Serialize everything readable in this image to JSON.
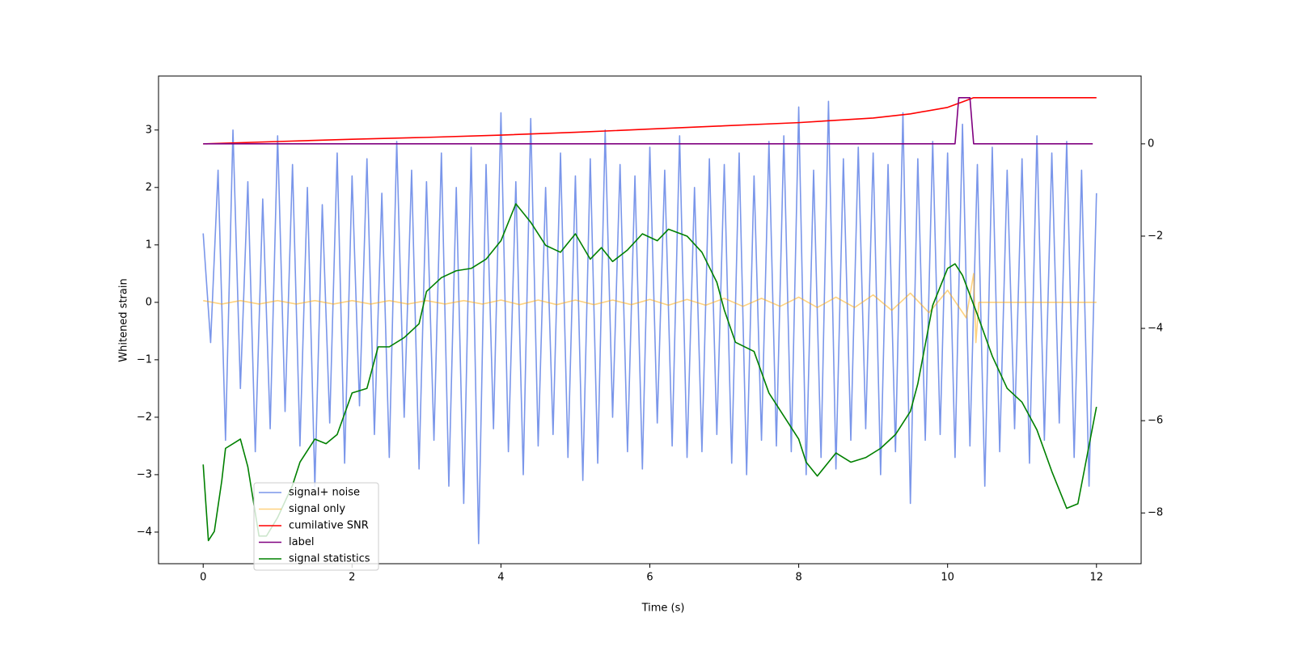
{
  "chart_data": {
    "type": "line",
    "xlabel": "Time (s)",
    "ylabel": "Whitened strain",
    "xlim": [
      -0.6,
      12.6
    ],
    "xticks": [
      0,
      2,
      4,
      6,
      8,
      10,
      12
    ],
    "ylim": [
      -4.55,
      3.94
    ],
    "yticks": [
      {
        "value": -4,
        "label": "−4"
      },
      {
        "value": -3,
        "label": "−3"
      },
      {
        "value": -2,
        "label": "−2"
      },
      {
        "value": -1,
        "label": "−1"
      },
      0,
      1,
      2,
      3
    ],
    "y2lim": [
      -9.1,
      1.47
    ],
    "y2ticks": [
      {
        "value": -8,
        "label": "−8"
      },
      {
        "value": -6,
        "label": "−6"
      },
      {
        "value": -4,
        "label": "−4"
      },
      {
        "value": -2,
        "label": "−2"
      },
      0
    ],
    "legend": "lower left",
    "series": [
      {
        "name": "signal+ noise",
        "color": "#4169e1",
        "opacity": 0.7,
        "x": [
          0,
          0.1,
          0.2,
          0.3,
          0.4,
          0.5,
          0.6,
          0.7,
          0.8,
          0.9,
          1,
          1.1,
          1.2,
          1.3,
          1.4,
          1.5,
          1.6,
          1.7,
          1.8,
          1.9,
          2,
          2.1,
          2.2,
          2.3,
          2.4,
          2.5,
          2.6,
          2.7,
          2.8,
          2.9,
          3,
          3.1,
          3.2,
          3.3,
          3.4,
          3.5,
          3.6,
          3.7,
          3.8,
          3.9,
          4,
          4.1,
          4.2,
          4.3,
          4.4,
          4.5,
          4.6,
          4.7,
          4.8,
          4.9,
          5,
          5.1,
          5.2,
          5.3,
          5.4,
          5.5,
          5.6,
          5.7,
          5.8,
          5.9,
          6,
          6.1,
          6.2,
          6.3,
          6.4,
          6.5,
          6.6,
          6.7,
          6.8,
          6.9,
          7,
          7.1,
          7.2,
          7.3,
          7.4,
          7.5,
          7.6,
          7.7,
          7.8,
          7.9,
          8,
          8.1,
          8.2,
          8.3,
          8.4,
          8.5,
          8.6,
          8.7,
          8.8,
          8.9,
          9,
          9.1,
          9.2,
          9.3,
          9.4,
          9.5,
          9.6,
          9.7,
          9.8,
          9.9,
          10,
          10.1,
          10.2,
          10.3,
          10.4,
          10.5,
          10.6,
          10.7,
          10.8,
          10.9,
          11,
          11.1,
          11.2,
          11.3,
          11.4,
          11.5,
          11.6,
          11.7,
          11.8,
          11.9,
          12
        ],
        "values": [
          1.2,
          -0.7,
          2.3,
          -2.4,
          3.0,
          -1.5,
          2.1,
          -2.6,
          1.8,
          -2.2,
          2.9,
          -1.9,
          2.4,
          -2.5,
          2.0,
          -3.2,
          1.7,
          -2.1,
          2.6,
          -2.8,
          2.2,
          -1.8,
          2.5,
          -2.3,
          1.9,
          -2.7,
          2.8,
          -2.0,
          2.3,
          -2.9,
          2.1,
          -2.4,
          2.6,
          -3.2,
          2.0,
          -3.5,
          2.7,
          -4.2,
          2.4,
          -2.2,
          3.3,
          -2.6,
          2.1,
          -3.0,
          3.2,
          -2.5,
          2.0,
          -2.3,
          2.6,
          -2.7,
          2.2,
          -3.1,
          2.5,
          -2.8,
          3.0,
          -2.0,
          2.4,
          -2.6,
          2.2,
          -2.9,
          2.7,
          -2.1,
          2.3,
          -2.5,
          2.9,
          -2.7,
          2.0,
          -2.6,
          2.5,
          -2.3,
          2.4,
          -2.8,
          2.6,
          -3.0,
          2.2,
          -2.4,
          2.8,
          -2.5,
          2.9,
          -2.6,
          3.4,
          -3.0,
          2.3,
          -2.7,
          3.5,
          -2.9,
          2.5,
          -2.4,
          2.7,
          -2.2,
          2.6,
          -3.0,
          2.4,
          -2.6,
          3.3,
          -3.5,
          2.5,
          -2.4,
          2.8,
          -2.3,
          2.6,
          -2.7,
          3.1,
          -2.5,
          2.4,
          -3.2,
          2.7,
          -2.6,
          2.3,
          -2.2,
          2.5,
          -2.8,
          2.9,
          -2.4,
          2.6,
          -2.1,
          2.8,
          -2.7,
          2.3,
          -3.2,
          1.9
        ]
      },
      {
        "name": "signal only",
        "color": "#ffa500",
        "opacity": 0.5,
        "x": [
          0,
          0.25,
          0.5,
          0.75,
          1,
          1.25,
          1.5,
          1.75,
          2,
          2.25,
          2.5,
          2.75,
          3,
          3.25,
          3.5,
          3.75,
          4,
          4.25,
          4.5,
          4.75,
          5,
          5.25,
          5.5,
          5.75,
          6,
          6.25,
          6.5,
          6.75,
          7,
          7.25,
          7.5,
          7.75,
          8,
          8.25,
          8.5,
          8.75,
          9,
          9.25,
          9.5,
          9.75,
          10,
          10.25,
          10.35,
          10.38,
          10.42,
          12
        ],
        "values": [
          0.03,
          -0.03,
          0.03,
          -0.03,
          0.03,
          -0.03,
          0.03,
          -0.03,
          0.03,
          -0.03,
          0.03,
          -0.03,
          0.03,
          -0.03,
          0.03,
          -0.03,
          0.04,
          -0.04,
          0.04,
          -0.04,
          0.04,
          -0.04,
          0.04,
          -0.04,
          0.05,
          -0.05,
          0.05,
          -0.05,
          0.07,
          -0.07,
          0.07,
          -0.07,
          0.09,
          -0.09,
          0.09,
          -0.09,
          0.13,
          -0.14,
          0.16,
          -0.18,
          0.21,
          -0.27,
          0.5,
          -0.7,
          0,
          0
        ]
      },
      {
        "name": "cumilative SNR",
        "color": "#ff0000",
        "axis": "y2",
        "x": [
          0,
          1,
          2,
          3,
          4,
          5,
          6,
          7,
          8,
          9,
          9.5,
          10,
          10.2,
          10.35,
          12
        ],
        "values": [
          0,
          0.05,
          0.1,
          0.14,
          0.19,
          0.25,
          0.32,
          0.39,
          0.46,
          0.56,
          0.65,
          0.79,
          0.91,
          1.0,
          1.0
        ]
      },
      {
        "name": "label",
        "color": "#800080",
        "axis": "y2",
        "x": [
          0,
          10.1,
          10.15,
          10.3,
          10.35,
          10.4,
          11.95
        ],
        "values": [
          0,
          0,
          1,
          1,
          0,
          0,
          0
        ]
      },
      {
        "name": "signal statistics",
        "color": "#008000",
        "axis": "y2",
        "x": [
          0,
          0.07,
          0.15,
          0.25,
          0.3,
          0.4,
          0.5,
          0.6,
          0.75,
          0.85,
          1.0,
          1.2,
          1.3,
          1.5,
          1.65,
          1.8,
          2.0,
          2.2,
          2.35,
          2.5,
          2.7,
          2.9,
          3.0,
          3.2,
          3.4,
          3.6,
          3.8,
          4.0,
          4.2,
          4.3,
          4.4,
          4.6,
          4.8,
          5.0,
          5.2,
          5.35,
          5.5,
          5.7,
          5.9,
          6.1,
          6.25,
          6.5,
          6.7,
          6.9,
          7.0,
          7.15,
          7.4,
          7.6,
          7.8,
          8.0,
          8.1,
          8.25,
          8.5,
          8.7,
          8.9,
          9.1,
          9.3,
          9.5,
          9.6,
          9.8,
          10.0,
          10.1,
          10.2,
          10.4,
          10.6,
          10.8,
          11.0,
          11.2,
          11.4,
          11.6,
          11.75,
          12.0
        ],
        "values": [
          -6.95,
          -8.6,
          -8.4,
          -7.3,
          -6.6,
          -6.5,
          -6.4,
          -7.0,
          -8.5,
          -8.5,
          -8.1,
          -7.4,
          -6.9,
          -6.4,
          -6.5,
          -6.3,
          -5.4,
          -5.3,
          -4.4,
          -4.4,
          -4.2,
          -3.9,
          -3.2,
          -2.9,
          -2.75,
          -2.7,
          -2.5,
          -2.1,
          -1.3,
          -1.5,
          -1.7,
          -2.2,
          -2.35,
          -1.95,
          -2.5,
          -2.25,
          -2.55,
          -2.3,
          -1.95,
          -2.1,
          -1.85,
          -2.0,
          -2.35,
          -3.0,
          -3.6,
          -4.3,
          -4.5,
          -5.4,
          -5.9,
          -6.4,
          -6.9,
          -7.2,
          -6.7,
          -6.9,
          -6.8,
          -6.6,
          -6.3,
          -5.8,
          -5.2,
          -3.5,
          -2.7,
          -2.6,
          -2.85,
          -3.7,
          -4.6,
          -5.3,
          -5.6,
          -6.2,
          -7.1,
          -7.9,
          -7.8,
          -5.7
        ]
      }
    ]
  }
}
